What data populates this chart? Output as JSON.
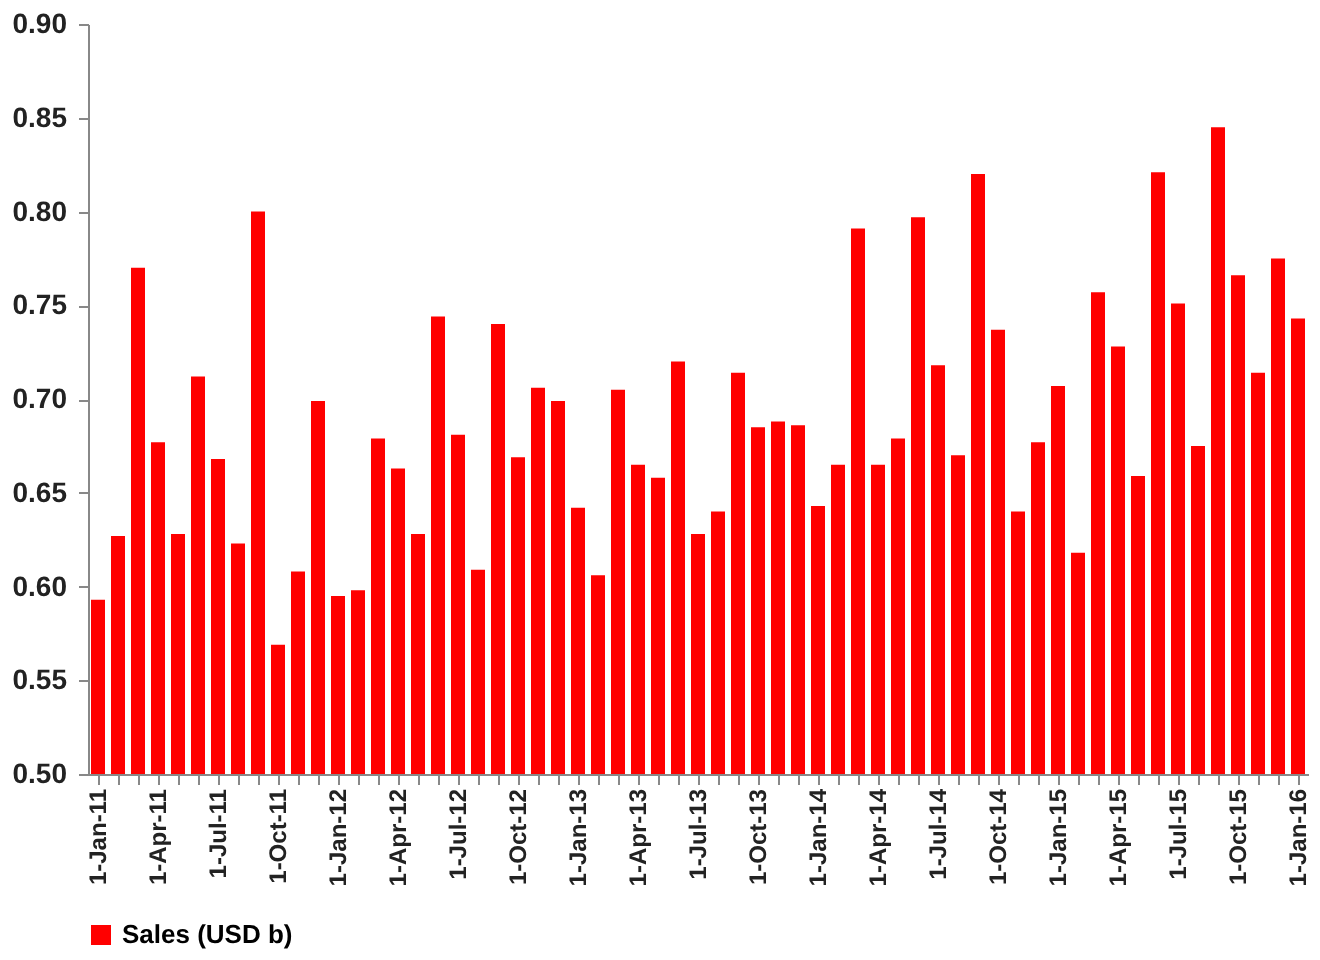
{
  "chart_data": {
    "type": "bar",
    "categories": [
      "1-Jan-11",
      null,
      null,
      "1-Apr-11",
      null,
      null,
      "1-Jul-11",
      null,
      null,
      "1-Oct-11",
      null,
      null,
      "1-Jan-12",
      null,
      null,
      "1-Apr-12",
      null,
      null,
      "1-Jul-12",
      null,
      null,
      "1-Oct-12",
      null,
      null,
      "1-Jan-13",
      null,
      null,
      "1-Apr-13",
      null,
      null,
      "1-Jul-13",
      null,
      null,
      "1-Oct-13",
      null,
      null,
      "1-Jan-14",
      null,
      null,
      "1-Apr-14",
      null,
      null,
      "1-Jul-14",
      null,
      null,
      "1-Oct-14",
      null,
      null,
      "1-Jan-15",
      null,
      null,
      "1-Apr-15",
      null,
      null,
      "1-Jul-15",
      null,
      null,
      "1-Oct-15",
      null,
      null,
      "1-Jan-16"
    ],
    "series": [
      {
        "name": "Sales (USD b)",
        "color": "#ff0000",
        "values": [
          0.593,
          0.627,
          0.77,
          0.677,
          0.628,
          0.712,
          0.668,
          0.623,
          0.8,
          0.569,
          0.608,
          0.699,
          0.595,
          0.598,
          0.679,
          0.663,
          0.628,
          0.744,
          0.681,
          0.609,
          0.74,
          0.669,
          0.706,
          0.699,
          0.642,
          0.606,
          0.705,
          0.665,
          0.658,
          0.72,
          0.628,
          0.64,
          0.714,
          0.685,
          0.688,
          0.686,
          0.643,
          0.665,
          0.791,
          0.665,
          0.679,
          0.797,
          0.718,
          0.67,
          0.82,
          0.737,
          0.64,
          0.677,
          0.707,
          0.618,
          0.757,
          0.728,
          0.659,
          0.821,
          0.751,
          0.675,
          0.845,
          0.766,
          0.714,
          0.775,
          0.743
        ]
      }
    ],
    "ylim": [
      0.5,
      0.9
    ],
    "yticks": [
      {
        "value": 0.5,
        "label": "0.50"
      },
      {
        "value": 0.55,
        "label": "0.55"
      },
      {
        "value": 0.6,
        "label": "0.60"
      },
      {
        "value": 0.65,
        "label": "0.65"
      },
      {
        "value": 0.7,
        "label": "0.70"
      },
      {
        "value": 0.75,
        "label": "0.75"
      },
      {
        "value": 0.8,
        "label": "0.80"
      },
      {
        "value": 0.85,
        "label": "0.85"
      },
      {
        "value": 0.9,
        "label": "0.90"
      }
    ],
    "grid": false,
    "legend": "bottom"
  }
}
